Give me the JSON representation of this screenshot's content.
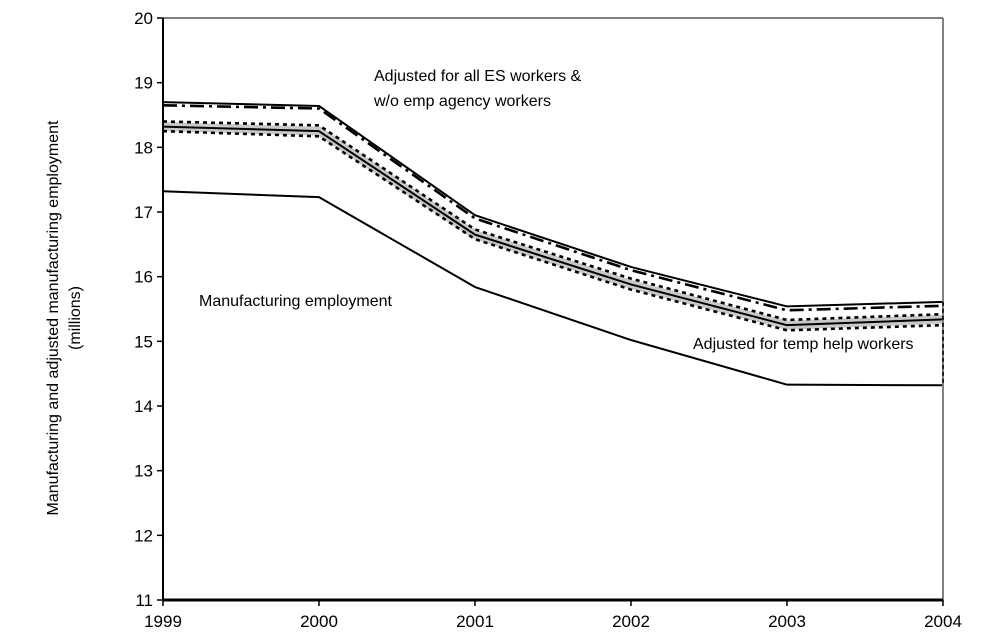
{
  "chart_data": {
    "type": "line",
    "ylabel_line1": "Manufacturing and adjusted manufacturing employment",
    "ylabel_line2": "(millions)",
    "xlabel": "",
    "x": [
      1999,
      2000,
      2001,
      2002,
      2003,
      2004
    ],
    "x_tick_labels": [
      "1999",
      "2000",
      "2001",
      "2002",
      "2003",
      "2004"
    ],
    "ylim": [
      11,
      20
    ],
    "y_ticks": [
      11,
      12,
      13,
      14,
      15,
      16,
      17,
      18,
      19,
      20
    ],
    "y_tick_labels": [
      "11",
      "12",
      "13",
      "14",
      "15",
      "16",
      "17",
      "18",
      "19",
      "20"
    ],
    "grid": false,
    "annotations": {
      "es_line1": "Adjusted for all ES workers &",
      "es_line2": "w/o emp agency workers",
      "manufacturing": "Manufacturing employment",
      "temp": "Adjusted for temp help workers"
    },
    "series": [
      {
        "values": [
          17.32,
          17.23,
          15.84,
          15.02,
          14.33,
          14.32
        ],
        "style": "solid",
        "color": "#000000"
      },
      {
        "values": [
          18.32,
          18.25,
          16.65,
          15.88,
          15.25,
          15.34
        ],
        "style": "solid",
        "color": "#000000"
      },
      {
        "values": [
          18.4,
          18.34,
          16.73,
          15.97,
          15.33,
          15.42
        ],
        "style": "dotted",
        "color": "#000000"
      },
      {
        "values": [
          18.25,
          18.17,
          16.58,
          15.8,
          15.17,
          15.25
        ],
        "style": "dotted",
        "color": "#000000"
      },
      {
        "values": [
          18.7,
          18.64,
          16.95,
          16.15,
          15.54,
          15.61
        ],
        "style": "solid",
        "color": "#000000"
      },
      {
        "values": [
          18.65,
          18.6,
          16.9,
          16.1,
          15.48,
          15.55
        ],
        "style": "dashdot",
        "color": "#000000"
      }
    ],
    "band": {
      "upper": [
        18.7,
        18.64,
        16.95,
        16.15,
        15.54,
        15.61
      ],
      "lower": [
        18.25,
        18.17,
        16.58,
        15.8,
        15.17,
        15.25
      ]
    },
    "colors": {
      "axis": "#808080",
      "line": "#000000",
      "shade": "#c8c8c8"
    }
  }
}
